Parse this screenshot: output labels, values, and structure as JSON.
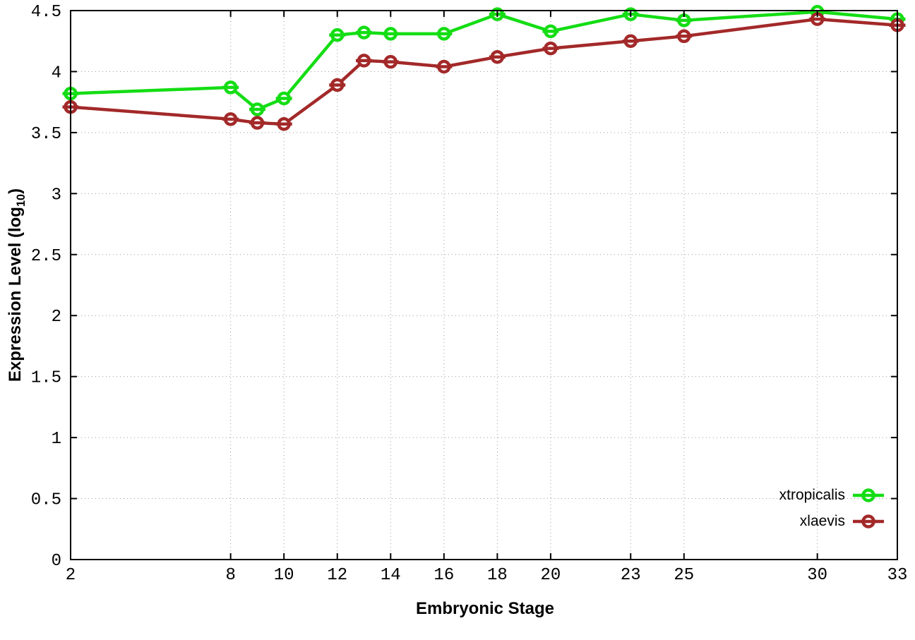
{
  "chart_data": {
    "type": "line",
    "title": "",
    "xlabel": "Embryonic Stage",
    "ylabel": "Expression Level (log10)",
    "ylabel_rich": {
      "prefix": "Expression Level (log",
      "subscript": "10",
      "suffix": ")"
    },
    "x": [
      2,
      8,
      9,
      10,
      12,
      13,
      14,
      16,
      18,
      20,
      23,
      25,
      30,
      33
    ],
    "series": [
      {
        "name": "xtropicalis",
        "color": "#14dd14",
        "values": [
          3.82,
          3.87,
          3.69,
          3.78,
          4.3,
          4.32,
          4.31,
          4.31,
          4.47,
          4.33,
          4.47,
          4.42,
          4.49,
          4.43
        ]
      },
      {
        "name": "xlaevis",
        "color": "#a32929",
        "values": [
          3.71,
          3.61,
          3.58,
          3.57,
          3.89,
          4.09,
          4.08,
          4.04,
          4.12,
          4.19,
          4.25,
          4.29,
          4.43,
          4.38
        ]
      }
    ],
    "xticks": [
      2,
      8,
      10,
      12,
      14,
      16,
      18,
      20,
      23,
      25,
      30,
      33
    ],
    "xtick_labels": [
      "2",
      "8",
      "10",
      "12",
      "14",
      "16",
      "18",
      "20",
      "23",
      "25",
      "30",
      "33"
    ],
    "yticks": [
      0,
      0.5,
      1,
      1.5,
      2,
      2.5,
      3,
      3.5,
      4,
      4.5
    ],
    "ytick_labels": [
      "0",
      "0.5",
      "1",
      "1.5",
      "2",
      "2.5",
      "3",
      "3.5",
      "4",
      "4.5"
    ],
    "xlim": [
      2,
      33
    ],
    "ylim": [
      0,
      4.5
    ],
    "grid": true,
    "grid_style": "dotted",
    "grid_color": "#9a9a9a",
    "axis_color": "#000000",
    "marker": "open-circle-with-horizontal-bar",
    "legend_position": "inside-bottom-right"
  }
}
